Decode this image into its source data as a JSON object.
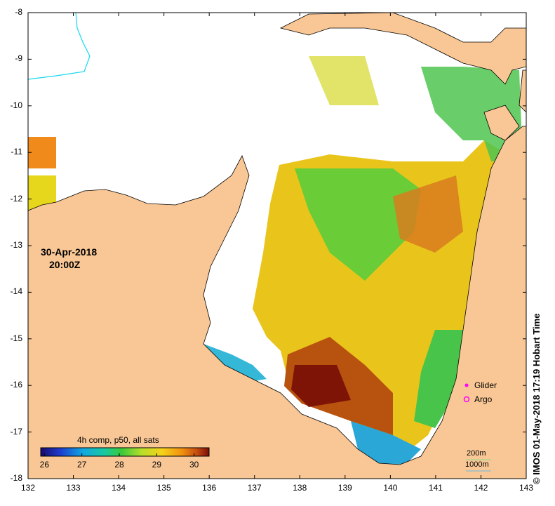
{
  "map": {
    "y_ticks": [
      "-8",
      "-9",
      "-10",
      "-11",
      "-12",
      "-13",
      "-14",
      "-15",
      "-16",
      "-17",
      "-18"
    ],
    "x_ticks": [
      "132",
      "133",
      "134",
      "135",
      "136",
      "137",
      "138",
      "139",
      "140",
      "141",
      "142",
      "143"
    ],
    "date": "30-Apr-2018",
    "time": "20:00Z",
    "legend": {
      "glider": "Glider",
      "argo": "Argo"
    },
    "scale": {
      "depth1": "200m",
      "depth2": "1000m"
    },
    "credit": "© IMOS 01-May-2018 17:19 Hobart Time",
    "colors": {
      "land": "#f9c795",
      "ocean_bg": "#ffffff"
    }
  },
  "colorbar": {
    "title": "4h comp, p50, all sats",
    "labels": [
      "26",
      "27",
      "28",
      "29",
      "30"
    ],
    "range": [
      25.9,
      30.4
    ]
  }
}
